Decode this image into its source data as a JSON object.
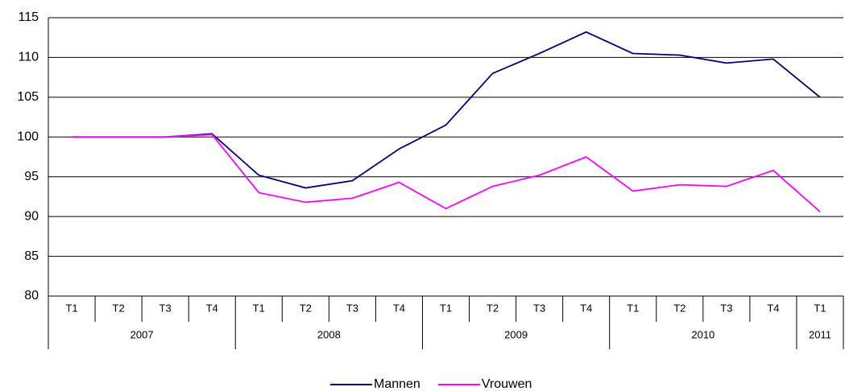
{
  "chart_data": {
    "type": "line",
    "categories": [
      "T1",
      "T2",
      "T3",
      "T4",
      "T1",
      "T2",
      "T3",
      "T4",
      "T1",
      "T2",
      "T3",
      "T4",
      "T1",
      "T2",
      "T3",
      "T4",
      "T1"
    ],
    "category_years": [
      "2007",
      "2007",
      "2007",
      "2007",
      "2008",
      "2008",
      "2008",
      "2008",
      "2009",
      "2009",
      "2009",
      "2009",
      "2010",
      "2010",
      "2010",
      "2010",
      "2011"
    ],
    "series": [
      {
        "name": "Mannen",
        "color": "#000080",
        "values": [
          100,
          100,
          100,
          100.4,
          95.2,
          93.6,
          94.5,
          98.5,
          101.5,
          108,
          110.5,
          113.2,
          110.5,
          110.3,
          109.3,
          109.8,
          105
        ]
      },
      {
        "name": "Vrouwen",
        "color": "#ff00ff",
        "values": [
          100,
          100,
          100,
          100.3,
          93,
          91.8,
          92.3,
          94.3,
          91,
          93.8,
          95.2,
          97.5,
          93.2,
          94,
          93.8,
          95.8,
          90.6
        ]
      }
    ],
    "ylim": [
      80,
      115
    ],
    "yticks": [
      80,
      85,
      90,
      95,
      100,
      105,
      110,
      115
    ],
    "grid": true,
    "legend": "bottom"
  }
}
